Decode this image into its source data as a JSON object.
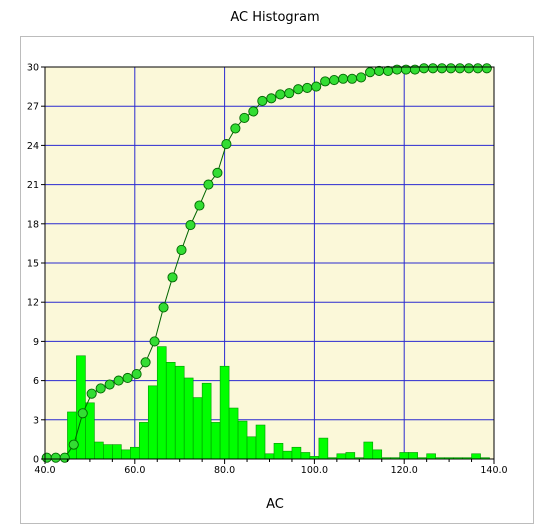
{
  "chart_data": {
    "type": "bar",
    "title": "AC Histogram",
    "xlabel": "AC",
    "ylabel": "",
    "xlim": [
      40,
      140
    ],
    "ylim": [
      0,
      30
    ],
    "x_ticks": [
      "40.0",
      "60.0",
      "80.0",
      "100.0",
      "120.0",
      "140.0"
    ],
    "y_ticks": [
      "0",
      "3",
      "6",
      "9",
      "12",
      "15",
      "18",
      "21",
      "24",
      "27",
      "30"
    ],
    "grid": true,
    "bin_width": 2,
    "colors": {
      "plot_bg": "#fbf8d9",
      "grid": "#2a2ad0",
      "bar_fill": "#00ff00",
      "bar_edge": "#009900",
      "point_fill": "#33dd33",
      "point_edge": "#006600"
    },
    "series": [
      {
        "type": "bar",
        "values": [
          {
            "x": 46,
            "y": 3.6
          },
          {
            "x": 48,
            "y": 7.9
          },
          {
            "x": 50,
            "y": 4.3
          },
          {
            "x": 52,
            "y": 1.3
          },
          {
            "x": 54,
            "y": 1.1
          },
          {
            "x": 56,
            "y": 1.1
          },
          {
            "x": 58,
            "y": 0.7
          },
          {
            "x": 60,
            "y": 0.9
          },
          {
            "x": 62,
            "y": 2.8
          },
          {
            "x": 64,
            "y": 5.6
          },
          {
            "x": 66,
            "y": 8.6
          },
          {
            "x": 68,
            "y": 7.4
          },
          {
            "x": 70,
            "y": 7.1
          },
          {
            "x": 72,
            "y": 6.2
          },
          {
            "x": 74,
            "y": 4.7
          },
          {
            "x": 76,
            "y": 5.8
          },
          {
            "x": 78,
            "y": 2.8
          },
          {
            "x": 80,
            "y": 7.1
          },
          {
            "x": 82,
            "y": 3.9
          },
          {
            "x": 84,
            "y": 2.9
          },
          {
            "x": 86,
            "y": 1.7
          },
          {
            "x": 88,
            "y": 2.6
          },
          {
            "x": 90,
            "y": 0.4
          },
          {
            "x": 92,
            "y": 1.2
          },
          {
            "x": 94,
            "y": 0.6
          },
          {
            "x": 96,
            "y": 0.9
          },
          {
            "x": 98,
            "y": 0.5
          },
          {
            "x": 100,
            "y": 0.2
          },
          {
            "x": 102,
            "y": 1.6
          },
          {
            "x": 104,
            "y": 0.1
          },
          {
            "x": 106,
            "y": 0.4
          },
          {
            "x": 108,
            "y": 0.5
          },
          {
            "x": 110,
            "y": 0.1
          },
          {
            "x": 112,
            "y": 1.3
          },
          {
            "x": 114,
            "y": 0.7
          },
          {
            "x": 116,
            "y": 0.1
          },
          {
            "x": 118,
            "y": 0.1
          },
          {
            "x": 120,
            "y": 0.5
          },
          {
            "x": 122,
            "y": 0.5
          },
          {
            "x": 124,
            "y": 0.1
          },
          {
            "x": 126,
            "y": 0.4
          },
          {
            "x": 128,
            "y": 0.1
          },
          {
            "x": 130,
            "y": 0.1
          },
          {
            "x": 132,
            "y": 0.1
          },
          {
            "x": 134,
            "y": 0.1
          },
          {
            "x": 136,
            "y": 0.4
          },
          {
            "x": 138,
            "y": 0.1
          }
        ]
      },
      {
        "type": "line",
        "values": [
          {
            "x": 40.4,
            "y": 0.1
          },
          {
            "x": 42.4,
            "y": 0.1
          },
          {
            "x": 44.4,
            "y": 0.1
          },
          {
            "x": 46.4,
            "y": 1.1
          },
          {
            "x": 48.4,
            "y": 3.5
          },
          {
            "x": 50.4,
            "y": 5.0
          },
          {
            "x": 52.4,
            "y": 5.4
          },
          {
            "x": 54.4,
            "y": 5.7
          },
          {
            "x": 56.4,
            "y": 6.0
          },
          {
            "x": 58.4,
            "y": 6.2
          },
          {
            "x": 60.4,
            "y": 6.5
          },
          {
            "x": 62.4,
            "y": 7.4
          },
          {
            "x": 64.4,
            "y": 9.0
          },
          {
            "x": 66.4,
            "y": 11.6
          },
          {
            "x": 68.4,
            "y": 13.9
          },
          {
            "x": 70.4,
            "y": 16.0
          },
          {
            "x": 72.4,
            "y": 17.9
          },
          {
            "x": 74.4,
            "y": 19.4
          },
          {
            "x": 76.4,
            "y": 21.0
          },
          {
            "x": 78.4,
            "y": 21.9
          },
          {
            "x": 80.4,
            "y": 24.1
          },
          {
            "x": 82.4,
            "y": 25.3
          },
          {
            "x": 84.4,
            "y": 26.1
          },
          {
            "x": 86.4,
            "y": 26.6
          },
          {
            "x": 88.4,
            "y": 27.4
          },
          {
            "x": 90.4,
            "y": 27.6
          },
          {
            "x": 92.4,
            "y": 27.9
          },
          {
            "x": 94.4,
            "y": 28.0
          },
          {
            "x": 96.4,
            "y": 28.3
          },
          {
            "x": 98.4,
            "y": 28.4
          },
          {
            "x": 100.4,
            "y": 28.5
          },
          {
            "x": 102.4,
            "y": 28.9
          },
          {
            "x": 104.4,
            "y": 29.0
          },
          {
            "x": 106.4,
            "y": 29.1
          },
          {
            "x": 108.4,
            "y": 29.1
          },
          {
            "x": 110.4,
            "y": 29.2
          },
          {
            "x": 112.4,
            "y": 29.6
          },
          {
            "x": 114.4,
            "y": 29.7
          },
          {
            "x": 116.4,
            "y": 29.7
          },
          {
            "x": 118.4,
            "y": 29.8
          },
          {
            "x": 120.4,
            "y": 29.8
          },
          {
            "x": 122.4,
            "y": 29.8
          },
          {
            "x": 124.4,
            "y": 29.9
          },
          {
            "x": 126.4,
            "y": 29.9
          },
          {
            "x": 128.4,
            "y": 29.9
          },
          {
            "x": 130.4,
            "y": 29.9
          },
          {
            "x": 132.4,
            "y": 29.9
          },
          {
            "x": 134.4,
            "y": 29.9
          },
          {
            "x": 136.4,
            "y": 29.9
          },
          {
            "x": 138.4,
            "y": 29.9
          }
        ]
      }
    ]
  }
}
